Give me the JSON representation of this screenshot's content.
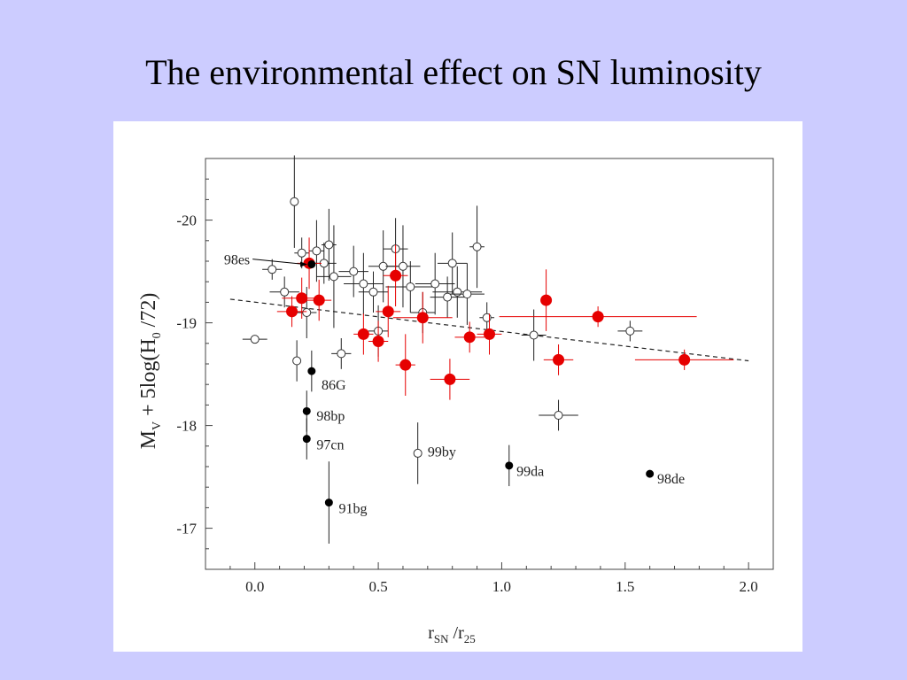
{
  "slide": {
    "title": "The environmental effect on SN luminosity",
    "background": "#ccccff"
  },
  "chart_data": {
    "type": "scatter",
    "title": "",
    "xlabel_main": "r",
    "xlabel_sub1": "SN",
    "xlabel_mid": " /r",
    "xlabel_sub2": "25",
    "ylabel_pre": "M",
    "ylabel_sub": "V",
    "ylabel_mid": " + 5log(H",
    "ylabel_sub2": "0",
    "ylabel_post": " /72)",
    "xlim": [
      -0.2,
      2.1
    ],
    "ylim": [
      -16.6,
      -20.6
    ],
    "y_reversed": true,
    "xticks": [
      0.0,
      0.5,
      1.0,
      1.5,
      2.0
    ],
    "xtick_labels": [
      "0.0",
      "0.5",
      "1.0",
      "1.5",
      "2.0"
    ],
    "yticks": [
      -20,
      -19,
      -18,
      -17
    ],
    "ytick_labels": [
      "-20",
      "-19",
      "-18",
      "-17"
    ],
    "grid": false,
    "colors": {
      "red": "#e60000",
      "black": "#000000",
      "open": "#ffffff"
    },
    "trend_line": {
      "style": "dashed",
      "x": [
        -0.1,
        2.0
      ],
      "y": [
        -19.23,
        -18.63
      ]
    },
    "series": [
      {
        "marker": "open-circle",
        "points": [
          {
            "x": 0.0,
            "y": -18.84,
            "xerr": 0.05,
            "yerr": 0.0
          },
          {
            "x": 0.07,
            "y": -19.52,
            "xerr": 0.04,
            "yerr": 0.1
          },
          {
            "x": 0.12,
            "y": -19.3,
            "xerr": 0.06,
            "yerr": 0.15
          },
          {
            "x": 0.16,
            "y": -20.18,
            "xerr": 0.0,
            "yerr": 0.45
          },
          {
            "x": 0.17,
            "y": -18.63,
            "xerr": 0.0,
            "yerr": 0.2
          },
          {
            "x": 0.19,
            "y": -19.68,
            "xerr": 0.03,
            "yerr": 0.15
          },
          {
            "x": 0.21,
            "y": -19.1,
            "xerr": 0.04,
            "yerr": 0.25
          },
          {
            "x": 0.25,
            "y": -19.7,
            "xerr": 0.03,
            "yerr": 0.3
          },
          {
            "x": 0.28,
            "y": -19.58,
            "xerr": 0.05,
            "yerr": 0.2
          },
          {
            "x": 0.3,
            "y": -19.76,
            "xerr": 0.03,
            "yerr": 0.35
          },
          {
            "x": 0.32,
            "y": -19.45,
            "xerr": 0.07,
            "yerr": 0.5
          },
          {
            "x": 0.35,
            "y": -18.7,
            "xerr": 0.04,
            "yerr": 0.15
          },
          {
            "x": 0.4,
            "y": -19.5,
            "xerr": 0.06,
            "yerr": 0.25
          },
          {
            "x": 0.44,
            "y": -19.38,
            "xerr": 0.08,
            "yerr": 0.3
          },
          {
            "x": 0.48,
            "y": -19.3,
            "xerr": 0.06,
            "yerr": 0.2
          },
          {
            "x": 0.5,
            "y": -18.92,
            "xerr": 0.04,
            "yerr": 0.25
          },
          {
            "x": 0.52,
            "y": -19.55,
            "xerr": 0.06,
            "yerr": 0.35
          },
          {
            "x": 0.57,
            "y": -19.72,
            "xerr": 0.05,
            "yerr": 0.3
          },
          {
            "x": 0.6,
            "y": -19.55,
            "xerr": 0.07,
            "yerr": 0.4
          },
          {
            "x": 0.63,
            "y": -19.35,
            "xerr": 0.1,
            "yerr": 0.25
          },
          {
            "x": 0.66,
            "y": -17.73,
            "xerr": 0.0,
            "yerr": 0.3
          },
          {
            "x": 0.68,
            "y": -19.1,
            "xerr": 0.05,
            "yerr": 0.2
          },
          {
            "x": 0.73,
            "y": -19.38,
            "xerr": 0.08,
            "yerr": 0.3
          },
          {
            "x": 0.78,
            "y": -19.25,
            "xerr": 0.07,
            "yerr": 0.2
          },
          {
            "x": 0.8,
            "y": -19.58,
            "xerr": 0.06,
            "yerr": 0.3
          },
          {
            "x": 0.82,
            "y": -19.3,
            "xerr": 0.1,
            "yerr": 0.25
          },
          {
            "x": 0.86,
            "y": -19.28,
            "xerr": 0.07,
            "yerr": 0.3
          },
          {
            "x": 0.9,
            "y": -19.74,
            "xerr": 0.03,
            "yerr": 0.4
          },
          {
            "x": 0.94,
            "y": -19.05,
            "xerr": 0.03,
            "yerr": 0.15
          },
          {
            "x": 1.13,
            "y": -18.88,
            "xerr": 0.05,
            "yerr": 0.25
          },
          {
            "x": 1.23,
            "y": -18.1,
            "xerr": 0.08,
            "yerr": 0.15
          },
          {
            "x": 1.52,
            "y": -18.92,
            "xerr": 0.05,
            "yerr": 0.1
          }
        ]
      },
      {
        "marker": "red-circle",
        "points": [
          {
            "x": 0.15,
            "y": -19.11,
            "xerr": 0.06,
            "yerr": 0.15
          },
          {
            "x": 0.19,
            "y": -19.24,
            "xerr": 0.08,
            "yerr": 0.2
          },
          {
            "x": 0.22,
            "y": -19.58,
            "xerr": 0.05,
            "yerr": 0.25
          },
          {
            "x": 0.26,
            "y": -19.22,
            "xerr": 0.05,
            "yerr": 0.2
          },
          {
            "x": 0.44,
            "y": -18.89,
            "xerr": 0.04,
            "yerr": 0.2
          },
          {
            "x": 0.5,
            "y": -18.82,
            "xerr": 0.04,
            "yerr": 0.2
          },
          {
            "x": 0.54,
            "y": -19.11,
            "xerr": 0.05,
            "yerr": 0.25
          },
          {
            "x": 0.57,
            "y": -19.46,
            "xerr": 0.05,
            "yerr": 0.3
          },
          {
            "x": 0.61,
            "y": -18.59,
            "xerr": 0.04,
            "yerr": 0.3
          },
          {
            "x": 0.68,
            "y": -19.05,
            "xerr": 0.12,
            "yerr": 0.25
          },
          {
            "x": 0.79,
            "y": -18.45,
            "xerr": 0.08,
            "yerr": 0.2
          },
          {
            "x": 0.87,
            "y": -18.86,
            "xerr": 0.06,
            "yerr": 0.15
          },
          {
            "x": 0.95,
            "y": -18.89,
            "xerr": 0.05,
            "yerr": 0.2
          },
          {
            "x": 1.18,
            "y": -19.22,
            "xerr": 0.0,
            "yerr": 0.3
          },
          {
            "x": 1.23,
            "y": -18.64,
            "xerr": 0.06,
            "yerr": 0.15
          },
          {
            "x": 1.39,
            "y": -19.06,
            "xerr": 0.4,
            "yerr": 0.1
          },
          {
            "x": 1.74,
            "y": -18.64,
            "xerr": 0.2,
            "yerr": 0.1
          }
        ]
      },
      {
        "marker": "black-dot",
        "points": [
          {
            "x": 0.23,
            "y": -19.57,
            "xerr": 0.0,
            "yerr": 0.0
          },
          {
            "x": 0.23,
            "y": -18.53,
            "xerr": 0.0,
            "yerr": 0.2
          },
          {
            "x": 0.21,
            "y": -18.14,
            "xerr": 0.0,
            "yerr": 0.2
          },
          {
            "x": 0.21,
            "y": -17.87,
            "xerr": 0.0,
            "yerr": 0.2
          },
          {
            "x": 0.3,
            "y": -17.25,
            "xerr": 0.0,
            "yerr": 0.4
          },
          {
            "x": 1.03,
            "y": -17.61,
            "xerr": 0.0,
            "yerr": 0.2
          },
          {
            "x": 1.6,
            "y": -17.53,
            "xerr": 0.0,
            "yerr": 0.0
          }
        ]
      }
    ],
    "annotations": [
      {
        "text": "98es",
        "x": -0.02,
        "y": -19.62,
        "arrow_to": [
          0.22,
          -19.57
        ]
      },
      {
        "text": "86G",
        "x": 0.27,
        "y": -18.4
      },
      {
        "text": "98bp",
        "x": 0.25,
        "y": -18.1
      },
      {
        "text": "97cn",
        "x": 0.25,
        "y": -17.82
      },
      {
        "text": "91bg",
        "x": 0.34,
        "y": -17.2
      },
      {
        "text": "99by",
        "x": 0.7,
        "y": -17.75
      },
      {
        "text": "99da",
        "x": 1.06,
        "y": -17.56
      },
      {
        "text": "98de",
        "x": 1.63,
        "y": -17.49
      }
    ]
  }
}
